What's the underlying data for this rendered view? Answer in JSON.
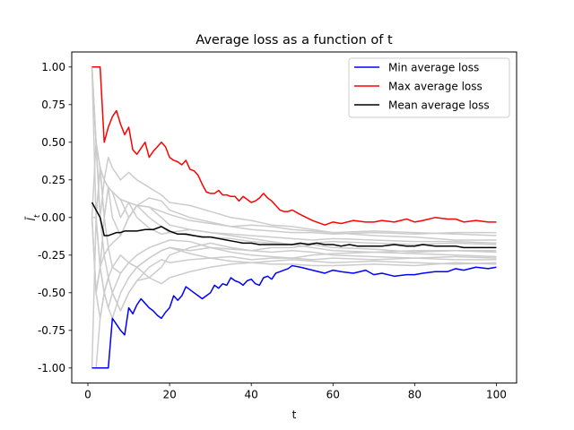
{
  "chart_data": {
    "type": "line",
    "title": "Average loss as a function of t",
    "xlabel": "t",
    "ylabel": "l̄_t",
    "xlim": [
      -3.95,
      104.95
    ],
    "ylim": [
      -1.1,
      1.1
    ],
    "xticks": [
      0,
      20,
      40,
      60,
      80,
      100
    ],
    "yticks": [
      -1.0,
      -0.75,
      -0.5,
      -0.25,
      0.0,
      0.25,
      0.5,
      0.75,
      1.0
    ],
    "grid": false,
    "legend_position": "top-right",
    "colors": {
      "min": "#0000ff",
      "max": "#ff0000",
      "mean": "#000000",
      "runs": "#cccccc"
    },
    "series": [
      {
        "name": "Min average loss",
        "color": "#0000ff",
        "x": [
          1,
          2,
          3,
          4,
          5,
          6,
          7,
          8,
          9,
          10,
          11,
          12,
          13,
          14,
          15,
          16,
          17,
          18,
          19,
          20,
          21,
          22,
          23,
          24,
          25,
          26,
          27,
          28,
          29,
          30,
          31,
          32,
          33,
          34,
          35,
          36,
          37,
          38,
          39,
          40,
          41,
          42,
          43,
          44,
          45,
          46,
          47,
          48,
          49,
          50,
          52,
          55,
          58,
          60,
          62,
          65,
          68,
          70,
          72,
          75,
          78,
          80,
          82,
          85,
          88,
          90,
          92,
          95,
          98,
          100
        ],
        "y": [
          -1.0,
          -1.0,
          -1.0,
          -1.0,
          -1.0,
          -0.67,
          -0.71,
          -0.75,
          -0.78,
          -0.6,
          -0.64,
          -0.58,
          -0.54,
          -0.57,
          -0.6,
          -0.62,
          -0.65,
          -0.67,
          -0.63,
          -0.6,
          -0.52,
          -0.55,
          -0.52,
          -0.46,
          -0.48,
          -0.5,
          -0.52,
          -0.54,
          -0.52,
          -0.5,
          -0.45,
          -0.47,
          -0.44,
          -0.45,
          -0.4,
          -0.42,
          -0.43,
          -0.45,
          -0.42,
          -0.41,
          -0.44,
          -0.45,
          -0.4,
          -0.39,
          -0.41,
          -0.37,
          -0.36,
          -0.35,
          -0.34,
          -0.32,
          -0.33,
          -0.35,
          -0.37,
          -0.35,
          -0.36,
          -0.37,
          -0.35,
          -0.38,
          -0.37,
          -0.39,
          -0.38,
          -0.38,
          -0.37,
          -0.36,
          -0.36,
          -0.34,
          -0.35,
          -0.33,
          -0.34,
          -0.33
        ]
      },
      {
        "name": "Max average loss",
        "color": "#ff0000",
        "x": [
          1,
          2,
          3,
          4,
          5,
          6,
          7,
          8,
          9,
          10,
          11,
          12,
          13,
          14,
          15,
          16,
          17,
          18,
          19,
          20,
          21,
          22,
          23,
          24,
          25,
          26,
          27,
          28,
          29,
          30,
          31,
          32,
          33,
          34,
          35,
          36,
          37,
          38,
          39,
          40,
          41,
          42,
          43,
          44,
          45,
          46,
          47,
          48,
          49,
          50,
          52,
          55,
          58,
          60,
          62,
          65,
          68,
          70,
          72,
          75,
          78,
          80,
          82,
          85,
          88,
          90,
          92,
          95,
          98,
          100
        ],
        "y": [
          1.0,
          1.0,
          1.0,
          0.5,
          0.6,
          0.67,
          0.71,
          0.62,
          0.55,
          0.6,
          0.45,
          0.42,
          0.46,
          0.5,
          0.4,
          0.44,
          0.47,
          0.5,
          0.47,
          0.4,
          0.38,
          0.37,
          0.35,
          0.38,
          0.32,
          0.31,
          0.28,
          0.22,
          0.17,
          0.16,
          0.16,
          0.18,
          0.15,
          0.15,
          0.14,
          0.14,
          0.11,
          0.14,
          0.12,
          0.1,
          0.11,
          0.13,
          0.16,
          0.13,
          0.11,
          0.08,
          0.05,
          0.04,
          0.04,
          0.05,
          0.02,
          -0.02,
          -0.05,
          -0.03,
          -0.04,
          -0.02,
          -0.03,
          -0.03,
          -0.02,
          -0.03,
          -0.01,
          -0.03,
          -0.02,
          0.0,
          -0.01,
          -0.01,
          -0.03,
          -0.02,
          -0.03,
          -0.03
        ]
      },
      {
        "name": "Mean average loss",
        "color": "#000000",
        "x": [
          1,
          2,
          3,
          4,
          5,
          6,
          7,
          8,
          9,
          10,
          12,
          14,
          16,
          18,
          20,
          22,
          24,
          26,
          28,
          30,
          32,
          34,
          36,
          38,
          40,
          42,
          44,
          46,
          48,
          50,
          52,
          54,
          56,
          58,
          60,
          62,
          64,
          66,
          68,
          70,
          72,
          75,
          78,
          80,
          82,
          85,
          88,
          90,
          92,
          95,
          98,
          100
        ],
        "y": [
          0.1,
          0.05,
          0.0,
          -0.12,
          -0.12,
          -0.11,
          -0.1,
          -0.1,
          -0.09,
          -0.09,
          -0.09,
          -0.08,
          -0.08,
          -0.06,
          -0.09,
          -0.11,
          -0.11,
          -0.12,
          -0.13,
          -0.13,
          -0.14,
          -0.15,
          -0.16,
          -0.17,
          -0.17,
          -0.18,
          -0.18,
          -0.18,
          -0.18,
          -0.18,
          -0.17,
          -0.18,
          -0.17,
          -0.18,
          -0.18,
          -0.19,
          -0.18,
          -0.19,
          -0.19,
          -0.19,
          -0.19,
          -0.18,
          -0.19,
          -0.19,
          -0.18,
          -0.19,
          -0.19,
          -0.19,
          -0.2,
          -0.2,
          -0.2,
          -0.2
        ]
      },
      {
        "color": "#cccccc",
        "x": [
          1,
          2,
          3,
          4,
          5,
          6,
          8,
          10,
          12,
          15,
          18,
          20,
          25,
          30,
          35,
          40,
          45,
          50,
          55,
          60,
          70,
          80,
          90,
          100
        ],
        "y": [
          1.0,
          0.5,
          0.33,
          0.25,
          0.2,
          0.17,
          0.12,
          0.1,
          0.08,
          0.07,
          0.04,
          0.02,
          -0.02,
          -0.04,
          -0.06,
          -0.08,
          -0.09,
          -0.1,
          -0.1,
          -0.11,
          -0.1,
          -0.11,
          -0.1,
          -0.1
        ]
      },
      {
        "color": "#cccccc",
        "x": [
          1,
          2,
          3,
          4,
          5,
          6,
          8,
          10,
          12,
          15,
          18,
          20,
          25,
          30,
          35,
          40,
          45,
          50,
          55,
          60,
          70,
          80,
          90,
          100
        ],
        "y": [
          1.0,
          0.5,
          0.0,
          0.25,
          0.4,
          0.33,
          0.25,
          0.3,
          0.25,
          0.2,
          0.15,
          0.1,
          0.08,
          0.04,
          0.0,
          -0.02,
          -0.05,
          -0.06,
          -0.08,
          -0.1,
          -0.12,
          -0.13,
          -0.15,
          -0.15
        ]
      },
      {
        "color": "#cccccc",
        "x": [
          1,
          2,
          3,
          4,
          5,
          6,
          8,
          10,
          12,
          15,
          18,
          20,
          25,
          30,
          35,
          40,
          45,
          50,
          55,
          60,
          70,
          80,
          90,
          100
        ],
        "y": [
          0.0,
          -0.5,
          -0.33,
          0.0,
          0.2,
          0.17,
          0.12,
          0.0,
          0.08,
          0.07,
          0.0,
          -0.05,
          -0.08,
          -0.1,
          -0.12,
          -0.14,
          -0.16,
          -0.18,
          -0.2,
          -0.22,
          -0.23,
          -0.24,
          -0.25,
          -0.26
        ]
      },
      {
        "color": "#cccccc",
        "x": [
          1,
          2,
          3,
          4,
          5,
          6,
          8,
          10,
          12,
          15,
          18,
          20,
          25,
          30,
          35,
          40,
          45,
          50,
          55,
          60,
          70,
          80,
          90,
          100
        ],
        "y": [
          -1.0,
          0.0,
          -0.33,
          -0.5,
          -0.6,
          -0.67,
          -0.5,
          -0.4,
          -0.33,
          -0.27,
          -0.22,
          -0.2,
          -0.24,
          -0.27,
          -0.26,
          -0.28,
          -0.27,
          -0.27,
          -0.25,
          -0.24,
          -0.23,
          -0.22,
          -0.22,
          -0.22
        ]
      },
      {
        "color": "#cccccc",
        "x": [
          1,
          2,
          3,
          4,
          5,
          6,
          8,
          10,
          12,
          15,
          18,
          20,
          25,
          30,
          35,
          40,
          45,
          50,
          55,
          60,
          70,
          80,
          90,
          100
        ],
        "y": [
          0.0,
          0.5,
          0.0,
          -0.25,
          -0.2,
          -0.33,
          -0.25,
          -0.3,
          -0.33,
          -0.4,
          -0.44,
          -0.4,
          -0.36,
          -0.33,
          -0.31,
          -0.3,
          -0.29,
          -0.28,
          -0.29,
          -0.3,
          -0.29,
          -0.3,
          -0.31,
          -0.3
        ]
      },
      {
        "color": "#cccccc",
        "x": [
          1,
          2,
          3,
          4,
          5,
          6,
          8,
          10,
          12,
          15,
          18,
          20,
          25,
          30,
          35,
          40,
          45,
          50,
          55,
          60,
          70,
          80,
          90,
          100
        ],
        "y": [
          1.0,
          0.0,
          0.33,
          0.0,
          -0.2,
          -0.17,
          -0.12,
          0.0,
          0.08,
          0.13,
          0.11,
          0.05,
          0.0,
          -0.03,
          -0.06,
          -0.05,
          -0.06,
          -0.08,
          -0.09,
          -0.1,
          -0.09,
          -0.1,
          -0.11,
          -0.12
        ]
      },
      {
        "color": "#cccccc",
        "x": [
          1,
          2,
          3,
          4,
          5,
          6,
          8,
          10,
          12,
          15,
          18,
          20,
          25,
          30,
          35,
          40,
          45,
          50,
          55,
          60,
          70,
          80,
          90,
          100
        ],
        "y": [
          0.0,
          -0.5,
          -0.33,
          -0.5,
          -0.4,
          -0.5,
          -0.62,
          -0.5,
          -0.42,
          -0.4,
          -0.33,
          -0.25,
          -0.2,
          -0.17,
          -0.2,
          -0.22,
          -0.2,
          -0.2,
          -0.18,
          -0.2,
          -0.21,
          -0.23,
          -0.22,
          -0.23
        ]
      },
      {
        "color": "#cccccc",
        "x": [
          1,
          2,
          3,
          4,
          5,
          6,
          8,
          10,
          12,
          15,
          18,
          20,
          25,
          30,
          35,
          40,
          45,
          50,
          55,
          60,
          70,
          80,
          90,
          100
        ],
        "y": [
          0.0,
          0.0,
          -0.33,
          -0.25,
          -0.4,
          -0.33,
          -0.37,
          -0.3,
          -0.25,
          -0.2,
          -0.17,
          -0.15,
          -0.16,
          -0.2,
          -0.23,
          -0.25,
          -0.26,
          -0.27,
          -0.28,
          -0.27,
          -0.28,
          -0.27,
          -0.28,
          -0.28
        ]
      },
      {
        "color": "#cccccc",
        "x": [
          1,
          2,
          3,
          4,
          5,
          6,
          8,
          10,
          12,
          15,
          18,
          20,
          25,
          30,
          35,
          40,
          45,
          50,
          55,
          60,
          70,
          80,
          90,
          100
        ],
        "y": [
          0.0,
          0.0,
          0.33,
          0.25,
          0.2,
          0.0,
          -0.12,
          0.0,
          0.08,
          0.0,
          -0.06,
          -0.1,
          -0.12,
          -0.13,
          -0.14,
          -0.16,
          -0.17,
          -0.18,
          -0.17,
          -0.16,
          -0.17,
          -0.18,
          -0.17,
          -0.18
        ]
      },
      {
        "color": "#cccccc",
        "x": [
          1,
          2,
          3,
          4,
          5,
          6,
          8,
          10,
          12,
          15,
          18,
          20,
          25,
          30,
          35,
          40,
          45,
          50,
          55,
          60,
          70,
          80,
          90,
          100
        ],
        "y": [
          -1.0,
          -1.0,
          -0.67,
          -0.5,
          -0.4,
          -0.5,
          -0.37,
          -0.3,
          -0.33,
          -0.27,
          -0.22,
          -0.2,
          -0.22,
          -0.2,
          -0.21,
          -0.22,
          -0.23,
          -0.22,
          -0.23,
          -0.25,
          -0.26,
          -0.27,
          -0.26,
          -0.27
        ]
      },
      {
        "color": "#cccccc",
        "x": [
          1,
          2,
          3,
          4,
          5,
          6,
          8,
          10,
          12,
          15,
          18,
          20,
          25,
          30,
          35,
          40,
          45,
          50,
          55,
          60,
          70,
          80,
          90,
          100
        ],
        "y": [
          1.0,
          0.5,
          0.33,
          0.0,
          0.2,
          0.17,
          0.0,
          0.1,
          0.0,
          -0.07,
          -0.11,
          -0.1,
          -0.08,
          -0.1,
          -0.11,
          -0.12,
          -0.13,
          -0.14,
          -0.15,
          -0.14,
          -0.15,
          -0.16,
          -0.16,
          -0.17
        ]
      },
      {
        "color": "#cccccc",
        "x": [
          1,
          2,
          3,
          4,
          5,
          6,
          8,
          10,
          12,
          15,
          18,
          20,
          25,
          30,
          35,
          40,
          45,
          50,
          55,
          60,
          70,
          80,
          90,
          100
        ],
        "y": [
          0.0,
          -0.5,
          -0.67,
          -0.5,
          -0.6,
          -0.5,
          -0.62,
          -0.5,
          -0.42,
          -0.33,
          -0.28,
          -0.3,
          -0.28,
          -0.27,
          -0.29,
          -0.3,
          -0.31,
          -0.31,
          -0.32,
          -0.32,
          -0.31,
          -0.32,
          -0.3,
          -0.31
        ]
      }
    ]
  }
}
